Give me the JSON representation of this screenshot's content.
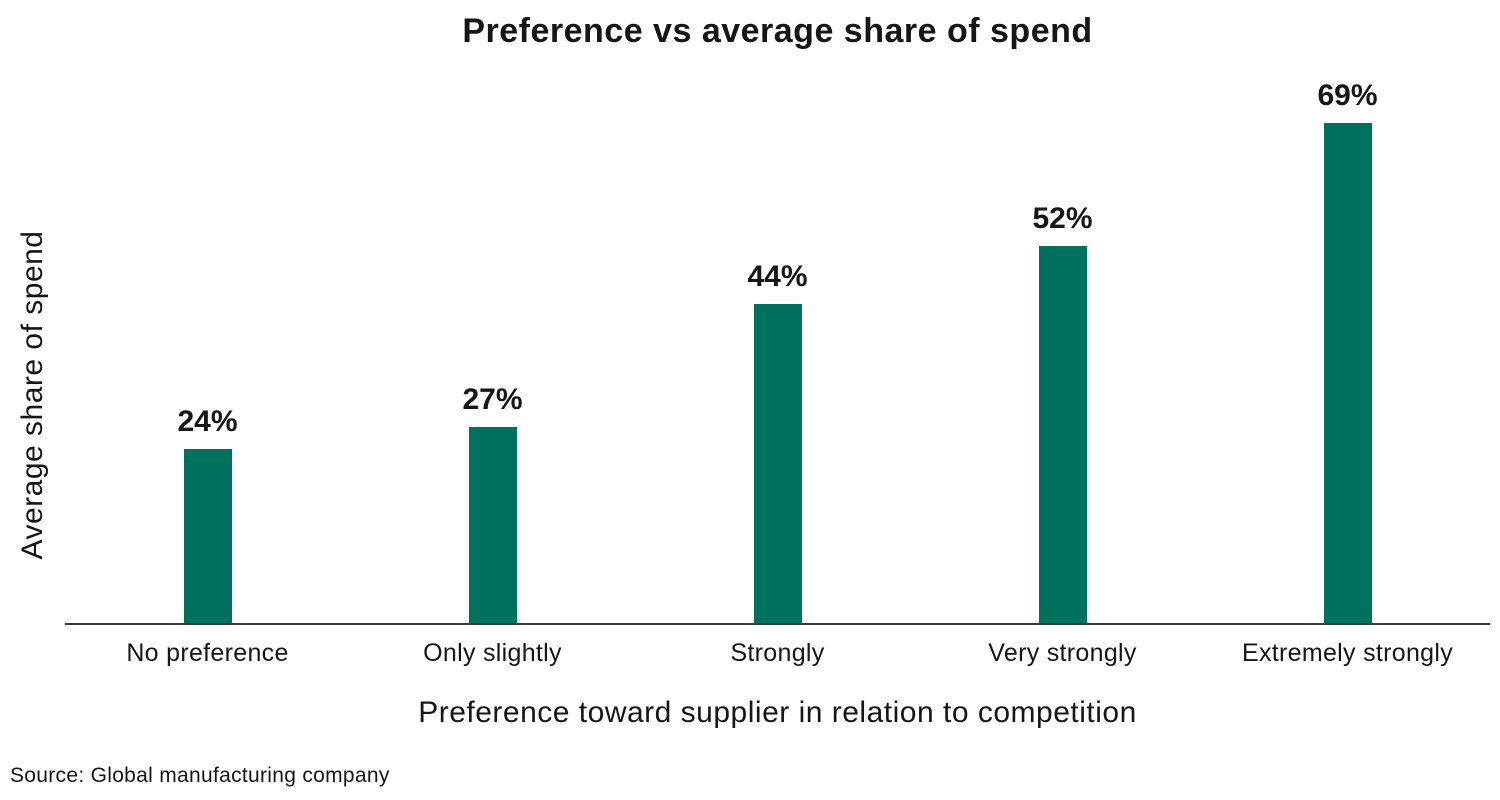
{
  "chart_data": {
    "type": "bar",
    "title": "Preference vs average share of spend",
    "categories": [
      "No preference",
      "Only slightly",
      "Strongly",
      "Very strongly",
      "Extremely strongly"
    ],
    "values": [
      24,
      27,
      44,
      52,
      69
    ],
    "value_labels": [
      "24%",
      "27%",
      "44%",
      "52%",
      "69%"
    ],
    "xlabel": "Preference toward supplier in relation to competition",
    "ylabel": "Average share of spend",
    "ylim": [
      0,
      69
    ],
    "grid": false,
    "legend": "none",
    "y_axis_ticks_visible": false
  },
  "source": "Source: Global manufacturing company",
  "colors": {
    "bar": "#00715F",
    "axis_line": "#3a3a3a",
    "text": "#161616",
    "background": "#ffffff"
  }
}
